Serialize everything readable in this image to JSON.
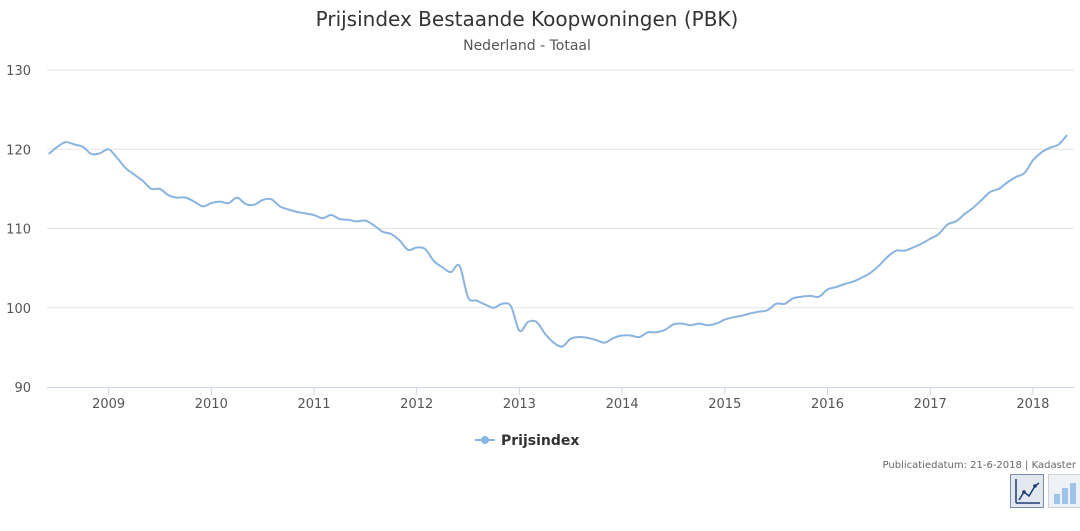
{
  "chart_data": {
    "type": "line",
    "title": "Prijsindex Bestaande Koopwoningen (PBK)",
    "subtitle": "Nederland - Totaal",
    "xlabel": "",
    "ylabel": "",
    "ylim": [
      90,
      130
    ],
    "yticks": [
      90,
      100,
      110,
      120,
      130
    ],
    "xlim": [
      2008.4,
      2018.4
    ],
    "xticks": [
      2009,
      2010,
      2011,
      2012,
      2013,
      2014,
      2015,
      2016,
      2017,
      2018
    ],
    "grid": true,
    "legend": "bottom-center",
    "series": [
      {
        "name": "Prijsindex",
        "color": "#8ab4e0",
        "x": [
          2008.417,
          2008.5,
          2008.583,
          2008.667,
          2008.75,
          2008.833,
          2008.917,
          2009.0,
          2009.083,
          2009.167,
          2009.25,
          2009.333,
          2009.417,
          2009.5,
          2009.583,
          2009.667,
          2009.75,
          2009.833,
          2009.917,
          2010.0,
          2010.083,
          2010.167,
          2010.25,
          2010.333,
          2010.417,
          2010.5,
          2010.583,
          2010.667,
          2010.75,
          2010.833,
          2010.917,
          2011.0,
          2011.083,
          2011.167,
          2011.25,
          2011.333,
          2011.417,
          2011.5,
          2011.583,
          2011.667,
          2011.75,
          2011.833,
          2011.917,
          2012.0,
          2012.083,
          2012.167,
          2012.25,
          2012.333,
          2012.417,
          2012.5,
          2012.583,
          2012.667,
          2012.75,
          2012.833,
          2012.917,
          2013.0,
          2013.083,
          2013.167,
          2013.25,
          2013.333,
          2013.417,
          2013.5,
          2013.583,
          2013.667,
          2013.75,
          2013.833,
          2013.917,
          2014.0,
          2014.083,
          2014.167,
          2014.25,
          2014.333,
          2014.417,
          2014.5,
          2014.583,
          2014.667,
          2014.75,
          2014.833,
          2014.917,
          2015.0,
          2015.083,
          2015.167,
          2015.25,
          2015.333,
          2015.417,
          2015.5,
          2015.583,
          2015.667,
          2015.75,
          2015.833,
          2015.917,
          2016.0,
          2016.083,
          2016.167,
          2016.25,
          2016.333,
          2016.417,
          2016.5,
          2016.583,
          2016.667,
          2016.75,
          2016.833,
          2016.917,
          2017.0,
          2017.083,
          2017.167,
          2017.25,
          2017.333,
          2017.417,
          2017.5,
          2017.583,
          2017.667,
          2017.75,
          2017.833,
          2017.917,
          2018.0,
          2018.083,
          2018.167,
          2018.25,
          2018.333
        ],
        "values": [
          119.4,
          120.3,
          120.9,
          120.6,
          120.3,
          119.4,
          119.5,
          120.0,
          118.9,
          117.6,
          116.8,
          116.0,
          115.0,
          115.0,
          114.2,
          113.9,
          113.9,
          113.4,
          112.8,
          113.2,
          113.4,
          113.2,
          113.9,
          113.1,
          113.0,
          113.6,
          113.7,
          112.8,
          112.4,
          112.1,
          111.9,
          111.7,
          111.3,
          111.7,
          111.2,
          111.1,
          110.9,
          111.0,
          110.4,
          109.6,
          109.3,
          108.5,
          107.3,
          107.6,
          107.4,
          105.9,
          105.1,
          104.5,
          105.3,
          101.3,
          100.9,
          100.4,
          100.0,
          100.5,
          100.2,
          97.1,
          98.2,
          98.2,
          96.7,
          95.6,
          95.1,
          96.1,
          96.3,
          96.2,
          95.9,
          95.6,
          96.2,
          96.5,
          96.5,
          96.3,
          96.9,
          96.9,
          97.2,
          97.9,
          98.0,
          97.8,
          98.0,
          97.8,
          98.0,
          98.5,
          98.8,
          99.0,
          99.3,
          99.5,
          99.7,
          100.5,
          100.5,
          101.2,
          101.4,
          101.5,
          101.4,
          102.3,
          102.6,
          103.0,
          103.3,
          103.8,
          104.4,
          105.3,
          106.4,
          107.2,
          107.2,
          107.6,
          108.1,
          108.7,
          109.3,
          110.5,
          110.9,
          111.8,
          112.6,
          113.6,
          114.6,
          115.0,
          115.8,
          116.5,
          117.0,
          118.6,
          119.6,
          120.2,
          120.6,
          121.8
        ]
      }
    ]
  },
  "credits": "Publicatiedatum: 21-6-2018 | Kadaster",
  "toolbar": {
    "line_icon": "line-chart-icon",
    "bar_icon": "bar-chart-icon"
  }
}
